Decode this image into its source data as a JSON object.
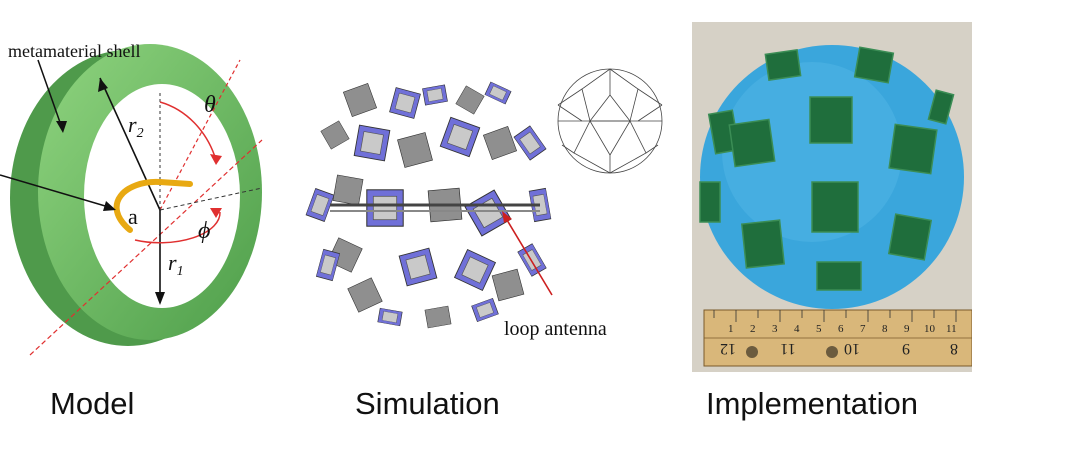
{
  "model": {
    "shell_label": "metamaterial shell",
    "symbol_r2": "r",
    "symbol_r2_sub": "2",
    "symbol_r1": "r",
    "symbol_r1_sub": "1",
    "symbol_theta": "θ",
    "symbol_phi": "ϕ",
    "symbol_a": "a",
    "caption": "Model"
  },
  "simulation": {
    "annotation": "loop antenna",
    "caption": "Simulation"
  },
  "implementation": {
    "ruler_top_numbers": [
      "1",
      "2",
      "3",
      "4",
      "5",
      "6",
      "7",
      "8",
      "9",
      "10",
      "11"
    ],
    "ruler_bottom_numbers": [
      "12",
      "11",
      "10",
      "9",
      "8"
    ],
    "caption": "Implementation"
  },
  "colors": {
    "shell_green": "#6cc06a",
    "loop_gold": "#e8a912",
    "patch_blue": "#7070d8",
    "foam_blue": "#3aa6dc",
    "pcb_green": "#1f6e3c",
    "ruler_wood": "#d9b77a"
  }
}
